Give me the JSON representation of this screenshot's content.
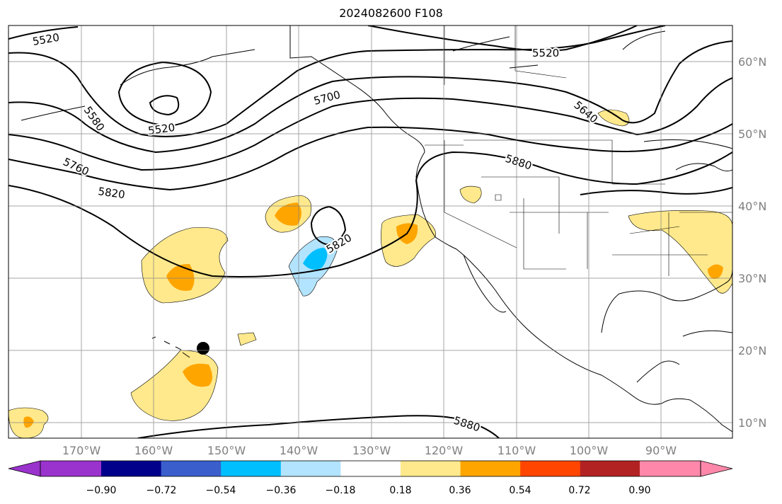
{
  "title": "2024082600 F108",
  "lon_labels": [
    "170°W",
    "160°W",
    "150°W",
    "140°W",
    "130°W",
    "120°W",
    "110°W",
    "100°W",
    "90°W"
  ],
  "lat_labels": [
    "60°N",
    "50°N",
    "40°N",
    "30°N",
    "20°N",
    "10°N"
  ],
  "contour_labels": [
    "5520",
    "5520",
    "5520",
    "5580",
    "5700",
    "5640",
    "5760",
    "5820",
    "5820",
    "5880",
    "5880"
  ],
  "colorbar": {
    "ticks": [
      "−0.90",
      "−0.72",
      "−0.54",
      "−0.36",
      "−0.18",
      "0.18",
      "0.36",
      "0.54",
      "0.72",
      "0.90"
    ],
    "colors": [
      "#9a32cd",
      "#00008b",
      "#3a5fcd",
      "#00bfff",
      "#b2e4ff",
      "#ffffff",
      "#ffe98c",
      "#ffa500",
      "#ff4500",
      "#b22222",
      "#ff88aa"
    ]
  }
}
